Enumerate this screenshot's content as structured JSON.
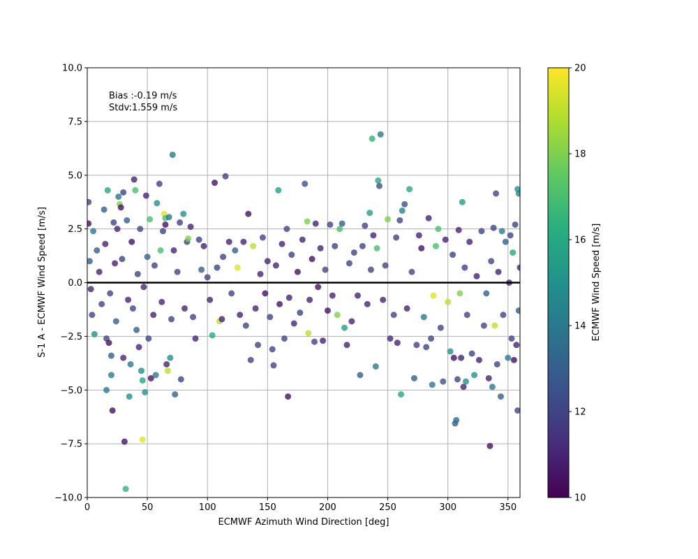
{
  "chart_data": {
    "type": "scatter",
    "title": "",
    "xlabel": "ECMWF Azimuth Wind Direction [deg]",
    "ylabel": "S-1 A - ECMWF Wind Speed [m/s]",
    "xlim": [
      0,
      360
    ],
    "ylim": [
      -10,
      10
    ],
    "xticks": [
      "0",
      "50",
      "100",
      "150",
      "200",
      "250",
      "300",
      "350"
    ],
    "yticks": [
      "10.0",
      "7.5",
      "5.0",
      "2.5",
      "0.0",
      "−2.5",
      "−5.0",
      "−7.5",
      "−10.0"
    ],
    "grid": true,
    "reference_line_y": 0,
    "annotations": [
      "Bias :-0.19 m/s",
      "Stdv:1.559 m/s"
    ],
    "colorbar": {
      "label": "ECMWF Wind Speed [m/s]",
      "range": [
        10,
        20
      ],
      "ticks": [
        "10",
        "12",
        "14",
        "16",
        "18",
        "20"
      ],
      "colormap": "viridis"
    },
    "marker_alpha": 0.8,
    "points": [
      {
        "x": 1,
        "y": 3.75,
        "c": 12
      },
      {
        "x": 1,
        "y": 2.75,
        "c": 10.5
      },
      {
        "x": 2,
        "y": 1.0,
        "c": 13
      },
      {
        "x": 3,
        "y": -0.3,
        "c": 11
      },
      {
        "x": 4,
        "y": -1.5,
        "c": 12
      },
      {
        "x": 5,
        "y": 2.4,
        "c": 14
      },
      {
        "x": 6,
        "y": -2.4,
        "c": 15
      },
      {
        "x": 8,
        "y": 1.5,
        "c": 13
      },
      {
        "x": 10,
        "y": 0.5,
        "c": 11
      },
      {
        "x": 12,
        "y": -1.0,
        "c": 12
      },
      {
        "x": 14,
        "y": 3.4,
        "c": 13
      },
      {
        "x": 15,
        "y": 1.8,
        "c": 11
      },
      {
        "x": 16,
        "y": -2.6,
        "c": 12
      },
      {
        "x": 16,
        "y": -5.0,
        "c": 14
      },
      {
        "x": 17,
        "y": 4.3,
        "c": 16
      },
      {
        "x": 18,
        "y": -2.8,
        "c": 10.5
      },
      {
        "x": 19,
        "y": -0.5,
        "c": 12
      },
      {
        "x": 20,
        "y": -3.4,
        "c": 13
      },
      {
        "x": 20,
        "y": -4.3,
        "c": 14
      },
      {
        "x": 21,
        "y": -5.95,
        "c": 10.5
      },
      {
        "x": 22,
        "y": 2.8,
        "c": 12
      },
      {
        "x": 23,
        "y": 0.9,
        "c": 11
      },
      {
        "x": 24,
        "y": -1.8,
        "c": 13
      },
      {
        "x": 25,
        "y": 2.5,
        "c": 11
      },
      {
        "x": 26,
        "y": 4.0,
        "c": 14
      },
      {
        "x": 27,
        "y": 3.65,
        "c": 18
      },
      {
        "x": 28,
        "y": 3.5,
        "c": 10.5
      },
      {
        "x": 29,
        "y": 1.1,
        "c": 12
      },
      {
        "x": 30,
        "y": 4.2,
        "c": 12
      },
      {
        "x": 30,
        "y": -3.5,
        "c": 11
      },
      {
        "x": 31,
        "y": -7.4,
        "c": 10.5
      },
      {
        "x": 32,
        "y": -9.6,
        "c": 16.5
      },
      {
        "x": 33,
        "y": 2.9,
        "c": 13
      },
      {
        "x": 34,
        "y": -0.8,
        "c": 11
      },
      {
        "x": 35,
        "y": -5.3,
        "c": 15
      },
      {
        "x": 36,
        "y": -3.8,
        "c": 14
      },
      {
        "x": 37,
        "y": 1.9,
        "c": 10.5
      },
      {
        "x": 38,
        "y": -1.2,
        "c": 12
      },
      {
        "x": 39,
        "y": 4.8,
        "c": 11
      },
      {
        "x": 40,
        "y": 4.3,
        "c": 17
      },
      {
        "x": 41,
        "y": -2.2,
        "c": 13
      },
      {
        "x": 42,
        "y": 0.4,
        "c": 12
      },
      {
        "x": 43,
        "y": -3.0,
        "c": 11
      },
      {
        "x": 44,
        "y": 2.5,
        "c": 12
      },
      {
        "x": 45,
        "y": -4.1,
        "c": 15
      },
      {
        "x": 46,
        "y": -4.55,
        "c": 16
      },
      {
        "x": 46,
        "y": -7.3,
        "c": 19.5
      },
      {
        "x": 47,
        "y": -0.2,
        "c": 11
      },
      {
        "x": 48,
        "y": -5.1,
        "c": 15
      },
      {
        "x": 49,
        "y": 4.05,
        "c": 11
      },
      {
        "x": 50,
        "y": 1.2,
        "c": 13
      },
      {
        "x": 51,
        "y": -2.6,
        "c": 12
      },
      {
        "x": 52,
        "y": 2.95,
        "c": 17
      },
      {
        "x": 53,
        "y": -4.45,
        "c": 10.5
      },
      {
        "x": 55,
        "y": -1.5,
        "c": 11
      },
      {
        "x": 56,
        "y": 0.8,
        "c": 12
      },
      {
        "x": 57,
        "y": -4.3,
        "c": 14
      },
      {
        "x": 58,
        "y": 3.7,
        "c": 15
      },
      {
        "x": 60,
        "y": 4.6,
        "c": 12
      },
      {
        "x": 61,
        "y": 1.5,
        "c": 17
      },
      {
        "x": 62,
        "y": -0.9,
        "c": 11
      },
      {
        "x": 63,
        "y": 2.4,
        "c": 12
      },
      {
        "x": 64,
        "y": 3.2,
        "c": 19.5
      },
      {
        "x": 65,
        "y": 2.7,
        "c": 10.5
      },
      {
        "x": 65,
        "y": 3.0,
        "c": 17
      },
      {
        "x": 66,
        "y": -3.8,
        "c": 11
      },
      {
        "x": 67,
        "y": -4.1,
        "c": 19
      },
      {
        "x": 68,
        "y": 3.05,
        "c": 14
      },
      {
        "x": 69,
        "y": -3.5,
        "c": 15
      },
      {
        "x": 70,
        "y": -1.7,
        "c": 12
      },
      {
        "x": 71,
        "y": 5.95,
        "c": 14
      },
      {
        "x": 72,
        "y": 1.5,
        "c": 11
      },
      {
        "x": 73,
        "y": -5.2,
        "c": 13
      },
      {
        "x": 75,
        "y": 0.5,
        "c": 12
      },
      {
        "x": 77,
        "y": 2.8,
        "c": 12
      },
      {
        "x": 78,
        "y": -4.5,
        "c": 12
      },
      {
        "x": 80,
        "y": 3.2,
        "c": 15
      },
      {
        "x": 81,
        "y": -1.2,
        "c": 11
      },
      {
        "x": 83,
        "y": 1.9,
        "c": 12
      },
      {
        "x": 84,
        "y": 2.05,
        "c": 18
      },
      {
        "x": 86,
        "y": 2.6,
        "c": 11
      },
      {
        "x": 88,
        "y": -1.6,
        "c": 12
      },
      {
        "x": 90,
        "y": -2.6,
        "c": 11
      },
      {
        "x": 93,
        "y": 2.0,
        "c": 12
      },
      {
        "x": 95,
        "y": 0.6,
        "c": 13
      },
      {
        "x": 97,
        "y": 1.7,
        "c": 11
      },
      {
        "x": 100,
        "y": 0.25,
        "c": 12
      },
      {
        "x": 102,
        "y": -0.8,
        "c": 11
      },
      {
        "x": 104,
        "y": -2.45,
        "c": 16
      },
      {
        "x": 106,
        "y": 4.65,
        "c": 10.5
      },
      {
        "x": 108,
        "y": 0.7,
        "c": 12
      },
      {
        "x": 110,
        "y": -1.8,
        "c": 19
      },
      {
        "x": 112,
        "y": -1.7,
        "c": 11
      },
      {
        "x": 113,
        "y": 1.2,
        "c": 12
      },
      {
        "x": 115,
        "y": 4.95,
        "c": 12
      },
      {
        "x": 118,
        "y": 1.9,
        "c": 11
      },
      {
        "x": 120,
        "y": -0.5,
        "c": 12
      },
      {
        "x": 123,
        "y": 1.5,
        "c": 13
      },
      {
        "x": 125,
        "y": 0.7,
        "c": 19.5
      },
      {
        "x": 127,
        "y": -1.5,
        "c": 11
      },
      {
        "x": 130,
        "y": 1.9,
        "c": 11
      },
      {
        "x": 132,
        "y": -2.0,
        "c": 12
      },
      {
        "x": 134,
        "y": 3.2,
        "c": 10.5
      },
      {
        "x": 136,
        "y": -3.6,
        "c": 12
      },
      {
        "x": 138,
        "y": 1.7,
        "c": 19
      },
      {
        "x": 140,
        "y": -1.2,
        "c": 11
      },
      {
        "x": 142,
        "y": -2.9,
        "c": 12
      },
      {
        "x": 144,
        "y": 0.4,
        "c": 11
      },
      {
        "x": 146,
        "y": 2.1,
        "c": 12
      },
      {
        "x": 148,
        "y": -0.5,
        "c": 10.5
      },
      {
        "x": 150,
        "y": 1.0,
        "c": 11
      },
      {
        "x": 152,
        "y": -1.6,
        "c": 12
      },
      {
        "x": 154,
        "y": -3.1,
        "c": 12
      },
      {
        "x": 155,
        "y": -3.85,
        "c": 12
      },
      {
        "x": 157,
        "y": 0.8,
        "c": 11
      },
      {
        "x": 159,
        "y": 4.3,
        "c": 15.5
      },
      {
        "x": 160,
        "y": -1.0,
        "c": 10.5
      },
      {
        "x": 162,
        "y": 1.8,
        "c": 11
      },
      {
        "x": 164,
        "y": -2.6,
        "c": 12
      },
      {
        "x": 166,
        "y": 2.5,
        "c": 12
      },
      {
        "x": 167,
        "y": -5.3,
        "c": 10.5
      },
      {
        "x": 168,
        "y": -0.7,
        "c": 11
      },
      {
        "x": 170,
        "y": 1.3,
        "c": 12
      },
      {
        "x": 172,
        "y": -1.9,
        "c": 11
      },
      {
        "x": 175,
        "y": 0.5,
        "c": 10.5
      },
      {
        "x": 177,
        "y": -1.4,
        "c": 12
      },
      {
        "x": 179,
        "y": 2.0,
        "c": 11
      },
      {
        "x": 181,
        "y": 4.6,
        "c": 12.5
      },
      {
        "x": 183,
        "y": 2.85,
        "c": 18
      },
      {
        "x": 184,
        "y": -2.35,
        "c": 19
      },
      {
        "x": 185,
        "y": -0.8,
        "c": 11
      },
      {
        "x": 187,
        "y": 1.1,
        "c": 10.5
      },
      {
        "x": 189,
        "y": -2.75,
        "c": 12
      },
      {
        "x": 190,
        "y": 2.75,
        "c": 11
      },
      {
        "x": 192,
        "y": -0.2,
        "c": 10.5
      },
      {
        "x": 194,
        "y": 1.6,
        "c": 11
      },
      {
        "x": 196,
        "y": -2.7,
        "c": 11
      },
      {
        "x": 198,
        "y": 0.6,
        "c": 12
      },
      {
        "x": 200,
        "y": -1.3,
        "c": 10.5
      },
      {
        "x": 202,
        "y": 2.7,
        "c": 12
      },
      {
        "x": 204,
        "y": -0.6,
        "c": 11
      },
      {
        "x": 206,
        "y": 1.7,
        "c": 12
      },
      {
        "x": 208,
        "y": -1.5,
        "c": 18
      },
      {
        "x": 210,
        "y": 2.5,
        "c": 17
      },
      {
        "x": 212,
        "y": 2.75,
        "c": 13
      },
      {
        "x": 214,
        "y": -2.1,
        "c": 15.5
      },
      {
        "x": 216,
        "y": -2.9,
        "c": 11
      },
      {
        "x": 218,
        "y": 0.9,
        "c": 12
      },
      {
        "x": 220,
        "y": -1.8,
        "c": 11
      },
      {
        "x": 222,
        "y": 1.4,
        "c": 12
      },
      {
        "x": 225,
        "y": -0.6,
        "c": 11
      },
      {
        "x": 227,
        "y": -4.3,
        "c": 13
      },
      {
        "x": 229,
        "y": 1.7,
        "c": 12
      },
      {
        "x": 231,
        "y": 2.65,
        "c": 12
      },
      {
        "x": 233,
        "y": -1.0,
        "c": 11
      },
      {
        "x": 235,
        "y": 3.25,
        "c": 15.5
      },
      {
        "x": 236,
        "y": 0.6,
        "c": 12
      },
      {
        "x": 237,
        "y": 6.7,
        "c": 16.5
      },
      {
        "x": 238,
        "y": 2.2,
        "c": 11
      },
      {
        "x": 240,
        "y": -3.9,
        "c": 14
      },
      {
        "x": 241,
        "y": 1.6,
        "c": 17
      },
      {
        "x": 242,
        "y": 4.75,
        "c": 16
      },
      {
        "x": 243,
        "y": 4.5,
        "c": 12.5
      },
      {
        "x": 244,
        "y": 6.9,
        "c": 14
      },
      {
        "x": 246,
        "y": -0.8,
        "c": 11
      },
      {
        "x": 248,
        "y": 0.8,
        "c": 12
      },
      {
        "x": 250,
        "y": 2.95,
        "c": 18
      },
      {
        "x": 252,
        "y": -2.6,
        "c": 11
      },
      {
        "x": 255,
        "y": -1.5,
        "c": 12
      },
      {
        "x": 257,
        "y": 2.1,
        "c": 12
      },
      {
        "x": 258,
        "y": -2.8,
        "c": 11
      },
      {
        "x": 260,
        "y": 2.9,
        "c": 12
      },
      {
        "x": 261,
        "y": -5.2,
        "c": 16
      },
      {
        "x": 262,
        "y": 3.35,
        "c": 14.5
      },
      {
        "x": 264,
        "y": 3.65,
        "c": 12.5
      },
      {
        "x": 266,
        "y": -1.2,
        "c": 11
      },
      {
        "x": 268,
        "y": 4.35,
        "c": 16
      },
      {
        "x": 270,
        "y": 0.5,
        "c": 12
      },
      {
        "x": 272,
        "y": -4.45,
        "c": 13
      },
      {
        "x": 274,
        "y": -2.9,
        "c": 12
      },
      {
        "x": 276,
        "y": 2.2,
        "c": 11
      },
      {
        "x": 278,
        "y": 1.6,
        "c": 10.5
      },
      {
        "x": 280,
        "y": -1.6,
        "c": 14
      },
      {
        "x": 282,
        "y": -3.0,
        "c": 12
      },
      {
        "x": 284,
        "y": 3.0,
        "c": 11
      },
      {
        "x": 286,
        "y": -2.6,
        "c": 12
      },
      {
        "x": 287,
        "y": -4.75,
        "c": 14
      },
      {
        "x": 288,
        "y": -0.6,
        "c": 19.5
      },
      {
        "x": 290,
        "y": 1.7,
        "c": 17
      },
      {
        "x": 292,
        "y": 2.5,
        "c": 17
      },
      {
        "x": 294,
        "y": -2.1,
        "c": 12
      },
      {
        "x": 296,
        "y": -4.6,
        "c": 12.5
      },
      {
        "x": 298,
        "y": 2.0,
        "c": 11
      },
      {
        "x": 300,
        "y": -0.9,
        "c": 19
      },
      {
        "x": 302,
        "y": -3.2,
        "c": 15
      },
      {
        "x": 304,
        "y": 1.3,
        "c": 12
      },
      {
        "x": 305,
        "y": -3.5,
        "c": 10.5
      },
      {
        "x": 306,
        "y": -6.55,
        "c": 13
      },
      {
        "x": 307,
        "y": -6.4,
        "c": 13.5
      },
      {
        "x": 308,
        "y": -4.5,
        "c": 12
      },
      {
        "x": 309,
        "y": 2.45,
        "c": 11
      },
      {
        "x": 310,
        "y": -0.5,
        "c": 18
      },
      {
        "x": 311,
        "y": -3.5,
        "c": 11
      },
      {
        "x": 312,
        "y": 3.75,
        "c": 15.5
      },
      {
        "x": 313,
        "y": -4.85,
        "c": 11
      },
      {
        "x": 314,
        "y": 0.7,
        "c": 12
      },
      {
        "x": 315,
        "y": -4.6,
        "c": 15
      },
      {
        "x": 316,
        "y": -1.5,
        "c": 12
      },
      {
        "x": 318,
        "y": 1.9,
        "c": 11
      },
      {
        "x": 320,
        "y": -3.3,
        "c": 12
      },
      {
        "x": 322,
        "y": -4.3,
        "c": 15
      },
      {
        "x": 324,
        "y": 0.3,
        "c": 11
      },
      {
        "x": 326,
        "y": -3.6,
        "c": 11
      },
      {
        "x": 328,
        "y": 2.4,
        "c": 12
      },
      {
        "x": 330,
        "y": -2.0,
        "c": 12
      },
      {
        "x": 332,
        "y": -0.5,
        "c": 13
      },
      {
        "x": 334,
        "y": -4.45,
        "c": 11
      },
      {
        "x": 335,
        "y": -7.6,
        "c": 10.5
      },
      {
        "x": 336,
        "y": 1.0,
        "c": 12
      },
      {
        "x": 337,
        "y": -4.85,
        "c": 14
      },
      {
        "x": 338,
        "y": 2.55,
        "c": 12
      },
      {
        "x": 339,
        "y": -2.0,
        "c": 19
      },
      {
        "x": 340,
        "y": 4.15,
        "c": 12
      },
      {
        "x": 341,
        "y": -3.8,
        "c": 12
      },
      {
        "x": 342,
        "y": 0.5,
        "c": 11
      },
      {
        "x": 344,
        "y": -5.3,
        "c": 13
      },
      {
        "x": 345,
        "y": 2.4,
        "c": 14
      },
      {
        "x": 346,
        "y": -1.5,
        "c": 12
      },
      {
        "x": 348,
        "y": 1.9,
        "c": 13
      },
      {
        "x": 350,
        "y": -3.5,
        "c": 14
      },
      {
        "x": 351,
        "y": 0.0,
        "c": 11
      },
      {
        "x": 352,
        "y": 2.2,
        "c": 12
      },
      {
        "x": 353,
        "y": -2.6,
        "c": 12
      },
      {
        "x": 354,
        "y": 1.4,
        "c": 16
      },
      {
        "x": 355,
        "y": -3.6,
        "c": 10.5
      },
      {
        "x": 356,
        "y": 2.7,
        "c": 12
      },
      {
        "x": 357,
        "y": -2.9,
        "c": 11
      },
      {
        "x": 358,
        "y": 4.35,
        "c": 15
      },
      {
        "x": 358,
        "y": -5.95,
        "c": 12
      },
      {
        "x": 359,
        "y": 4.15,
        "c": 14.5
      },
      {
        "x": 359,
        "y": -1.3,
        "c": 13
      },
      {
        "x": 360,
        "y": 0.7,
        "c": 11
      }
    ]
  }
}
